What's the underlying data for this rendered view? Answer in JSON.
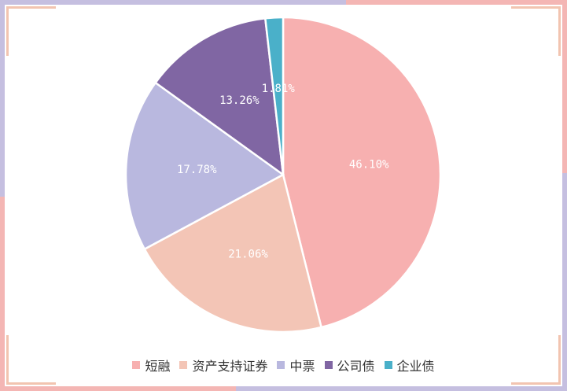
{
  "chart_data": {
    "type": "pie",
    "categories": [
      "短融",
      "资产支持证券",
      "中票",
      "公司债",
      "企业债"
    ],
    "values": [
      46.1,
      21.06,
      17.78,
      13.26,
      1.81
    ],
    "value_labels": [
      "46.10%",
      "21.06%",
      "17.78%",
      "13.26%",
      "1.81%"
    ],
    "colors": [
      "#f7b0b0",
      "#f3c5b6",
      "#b9b8df",
      "#8066a3",
      "#4ab0c9"
    ],
    "legend_position": "bottom",
    "start_angle": "12 o'clock",
    "direction": "clockwise"
  },
  "legend": {
    "items": [
      {
        "label": "短融",
        "color": "#f7b0b0"
      },
      {
        "label": "资产支持证券",
        "color": "#f3c5b6"
      },
      {
        "label": "中票",
        "color": "#b9b8df"
      },
      {
        "label": "公司债",
        "color": "#8066a3"
      },
      {
        "label": "企业债",
        "color": "#4ab0c9"
      }
    ]
  }
}
